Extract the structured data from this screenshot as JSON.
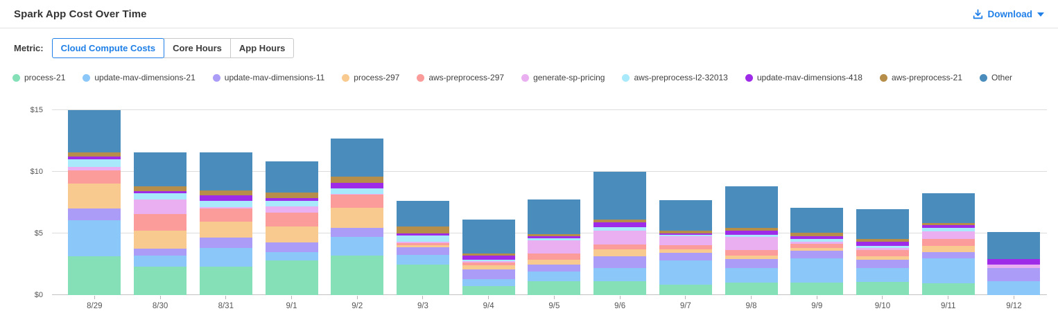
{
  "header": {
    "title": "Spark App Cost Over Time",
    "download_label": "Download"
  },
  "metric": {
    "label": "Metric:",
    "options": [
      {
        "label": "Cloud Compute Costs",
        "selected": true
      },
      {
        "label": "Core Hours",
        "selected": false
      },
      {
        "label": "App Hours",
        "selected": false
      }
    ]
  },
  "colors": {
    "accent_blue": "#2080e8",
    "gridline": "#dcdcdc",
    "axis_text": "#555555"
  },
  "chart_data": {
    "type": "bar",
    "stacked": true,
    "title": "Spark App Cost Over Time",
    "xlabel": "",
    "ylabel": "",
    "y_tick_prefix": "$",
    "yticks": [
      0,
      5,
      10,
      15
    ],
    "ylim": [
      0,
      15.5
    ],
    "grid": true,
    "legend_position": "top",
    "categories": [
      "8/29",
      "8/30",
      "8/31",
      "9/1",
      "9/2",
      "9/3",
      "9/4",
      "9/5",
      "9/6",
      "9/7",
      "9/8",
      "9/9",
      "9/10",
      "9/11",
      "9/12"
    ],
    "series": [
      {
        "name": "process-21",
        "color": "#85e0b8",
        "values": [
          3.15,
          2.3,
          2.3,
          2.8,
          3.2,
          2.45,
          0.75,
          1.1,
          1.1,
          0.85,
          1.0,
          1.0,
          1.05,
          0.95,
          0.0
        ]
      },
      {
        "name": "update-mav-dimensions-21",
        "color": "#8cc7fa",
        "values": [
          2.9,
          0.9,
          1.5,
          0.7,
          1.5,
          0.8,
          0.55,
          0.8,
          1.1,
          1.95,
          1.2,
          1.95,
          1.15,
          2.0,
          1.15
        ]
      },
      {
        "name": "update-mav-dimensions-11",
        "color": "#aa9cf7",
        "values": [
          0.95,
          0.55,
          0.85,
          0.75,
          0.75,
          0.6,
          0.8,
          0.55,
          0.95,
          0.6,
          0.75,
          0.65,
          0.65,
          0.55,
          1.05
        ]
      },
      {
        "name": "process-297",
        "color": "#f9ca8f",
        "values": [
          2.05,
          1.5,
          1.3,
          1.3,
          1.65,
          0.2,
          0.3,
          0.4,
          0.55,
          0.3,
          0.25,
          0.2,
          0.3,
          0.5,
          0.0
        ]
      },
      {
        "name": "aws-preprocess-297",
        "color": "#fb9b9a",
        "values": [
          1.05,
          1.35,
          1.1,
          1.15,
          1.05,
          0.15,
          0.25,
          0.55,
          0.4,
          0.35,
          0.45,
          0.35,
          0.5,
          0.55,
          0.0
        ]
      },
      {
        "name": "generate-sp-pricing",
        "color": "#e9aff0",
        "values": [
          0.3,
          1.15,
          0.1,
          0.5,
          0.05,
          0.15,
          0.1,
          1.05,
          1.15,
          0.7,
          1.05,
          0.2,
          0.15,
          0.6,
          0.3
        ]
      },
      {
        "name": "aws-preprocess-l2-32013",
        "color": "#a8eafb",
        "values": [
          0.6,
          0.5,
          0.5,
          0.45,
          0.45,
          0.5,
          0.1,
          0.15,
          0.25,
          0.15,
          0.2,
          0.2,
          0.2,
          0.3,
          0.0
        ]
      },
      {
        "name": "update-mav-dimensions-418",
        "color": "#9e2be8",
        "values": [
          0.25,
          0.2,
          0.45,
          0.2,
          0.45,
          0.15,
          0.35,
          0.2,
          0.4,
          0.1,
          0.35,
          0.25,
          0.35,
          0.2,
          0.4
        ]
      },
      {
        "name": "aws-preprocess-21",
        "color": "#b68d49",
        "values": [
          0.35,
          0.4,
          0.4,
          0.45,
          0.5,
          0.55,
          0.2,
          0.15,
          0.25,
          0.25,
          0.2,
          0.25,
          0.2,
          0.2,
          0.0
        ]
      },
      {
        "name": "Other",
        "color": "#4a8cbc",
        "values": [
          3.4,
          2.75,
          3.05,
          2.55,
          3.1,
          2.1,
          2.75,
          2.8,
          3.85,
          2.45,
          3.35,
          2.05,
          2.4,
          2.4,
          2.2
        ]
      }
    ]
  }
}
